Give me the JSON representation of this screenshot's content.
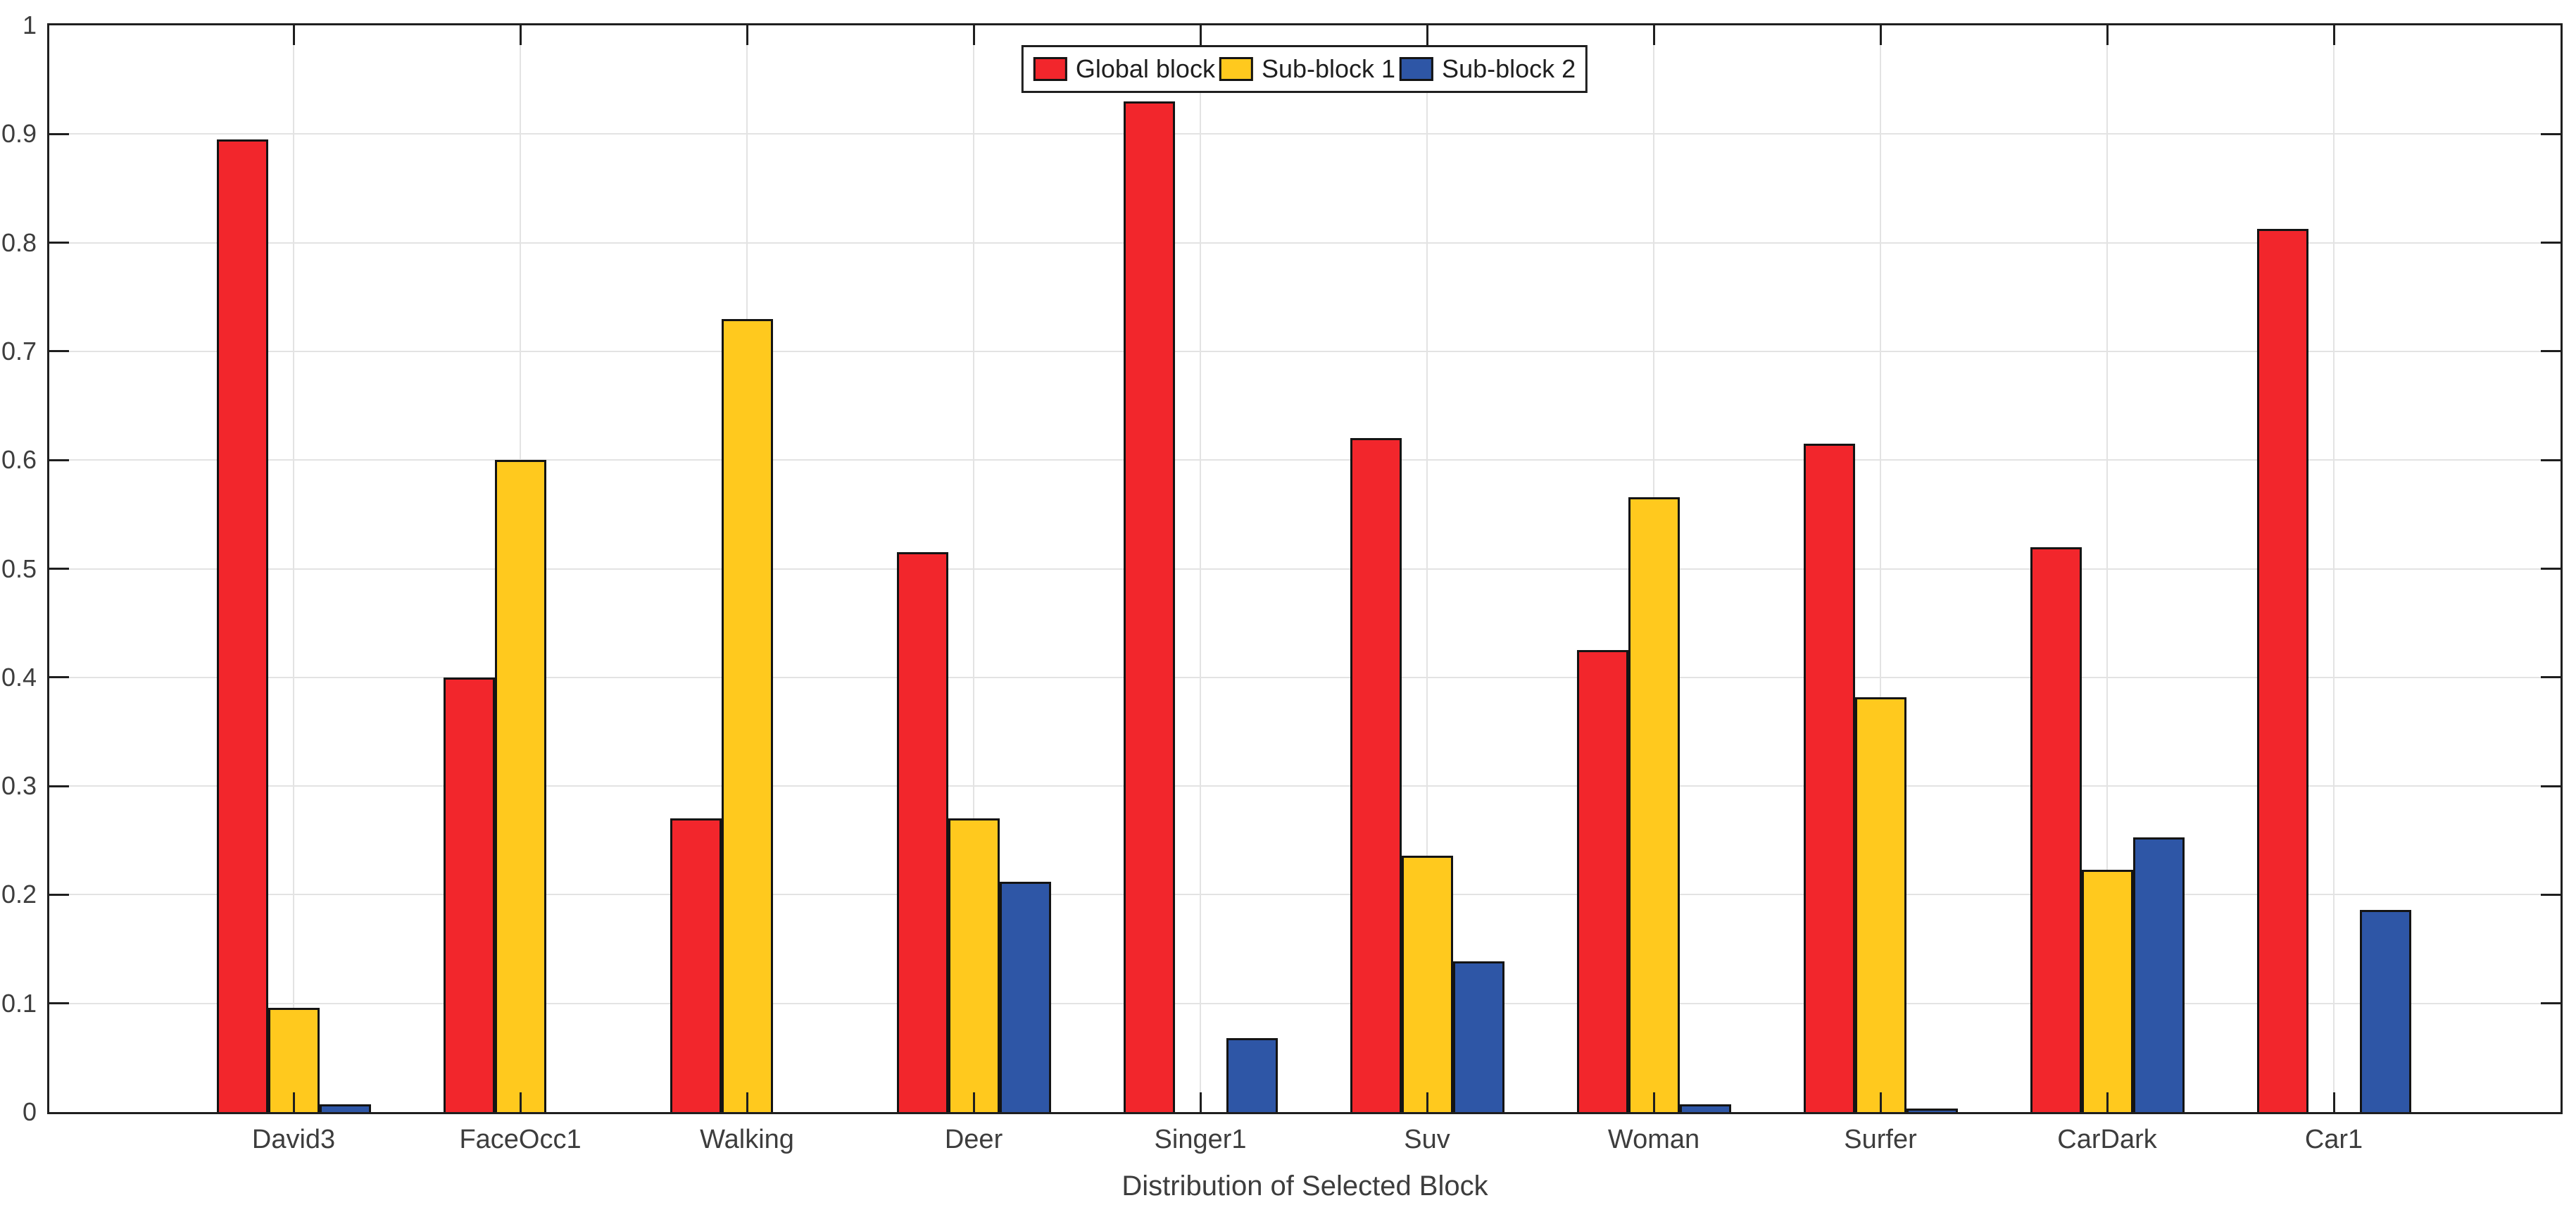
{
  "chart_data": {
    "type": "bar",
    "title": "",
    "xlabel": "Distribution of Selected Block",
    "ylabel": "",
    "ylim": [
      0,
      1
    ],
    "ytick_labels": [
      "0",
      "0.1",
      "0.2",
      "0.3",
      "0.4",
      "0.5",
      "0.6",
      "0.7",
      "0.8",
      "0.9",
      "1"
    ],
    "grid": "on",
    "legend_position": "top-center",
    "categories": [
      "David3",
      "FaceOcc1",
      "Walking",
      "Deer",
      "Singer1",
      "Suv",
      "Woman",
      "Surfer",
      "CarDark",
      "Car1"
    ],
    "series": [
      {
        "name": "Global block",
        "color": "#F2262C",
        "values": [
          0.895,
          0.4,
          0.27,
          0.515,
          0.93,
          0.62,
          0.425,
          0.615,
          0.52,
          0.813
        ]
      },
      {
        "name": "Sub-block 1",
        "color": "#FFC91E",
        "values": [
          0.096,
          0.6,
          0.73,
          0.27,
          0,
          0.236,
          0.566,
          0.382,
          0.223,
          0
        ]
      },
      {
        "name": "Sub-block 2",
        "color": "#2E56A6",
        "values": [
          0.007,
          0,
          0,
          0.212,
          0.068,
          0.139,
          0.007,
          0.003,
          0.253,
          0.186
        ]
      }
    ],
    "style_colors": {
      "axis": "#1F1F1F",
      "gridline": "#E3E3E3",
      "tick_text": "#3D3D3D",
      "background": "#FFFFFF"
    }
  }
}
